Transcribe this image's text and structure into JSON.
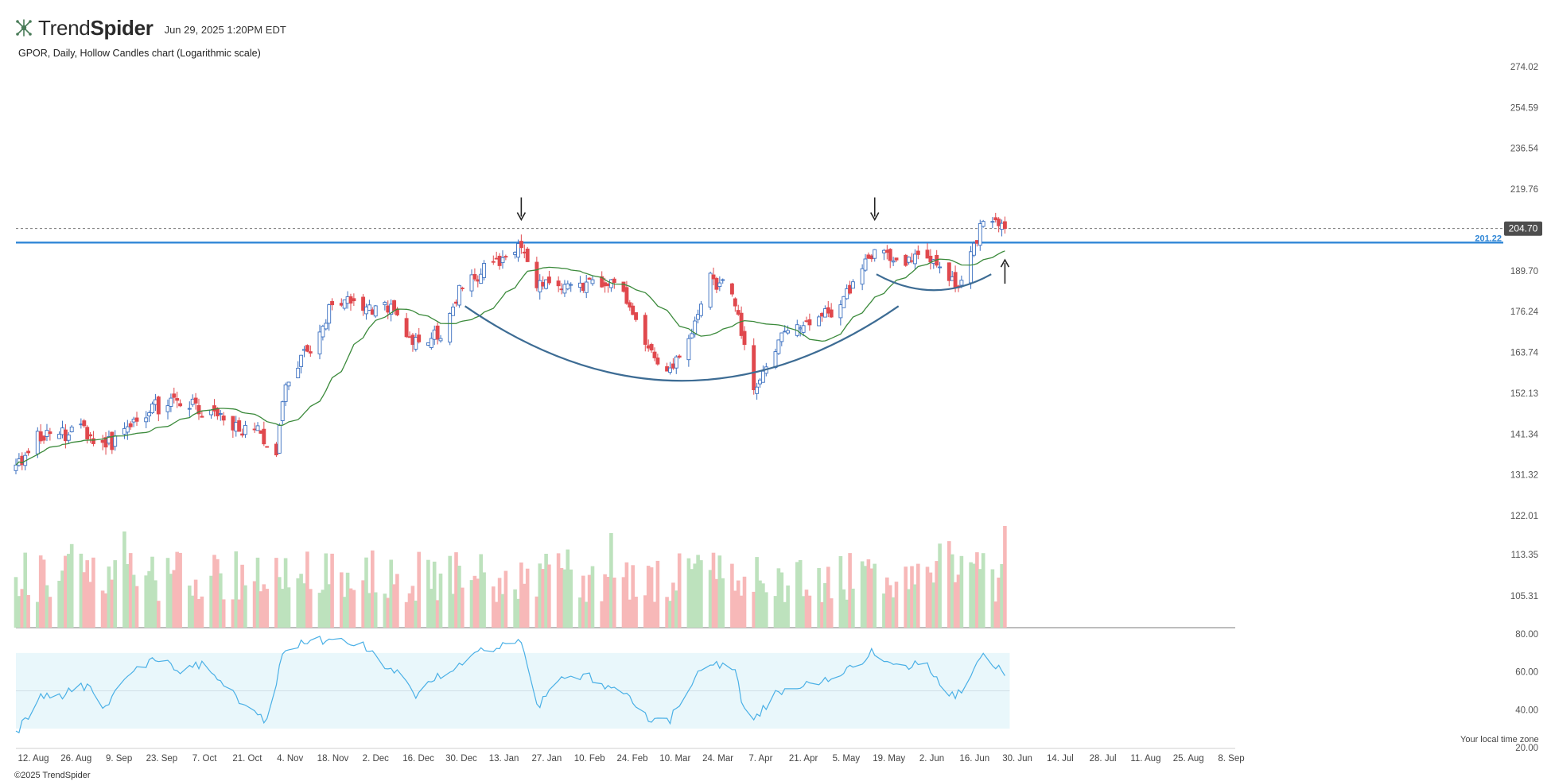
{
  "header": {
    "brand_light": "Trend",
    "brand_bold": "Spider",
    "timestamp": "Jun 29, 2025 1:20PM EDT",
    "subtitle": "GPOR, Daily, Hollow Candles chart (Logarithmic scale)"
  },
  "footer": {
    "copyright": "©2025 TrendSpider",
    "timezone_note": "Your local time zone"
  },
  "colors": {
    "up": "#3a6fc0",
    "down": "#e0484d",
    "ma": "#3b8a3b",
    "level": "#2f86d6",
    "rsi": "#4ab0e6",
    "rsi_band": "#e9f7fb",
    "vol_up": "#bde2bd",
    "vol_down": "#f7b8b8",
    "arc": "#3d6c94"
  },
  "chart_data": [
    {
      "type": "candlestick",
      "scale": "log",
      "y_ticks": [
        "274.02",
        "254.59",
        "236.54",
        "219.76",
        "189.70",
        "176.24",
        "163.74",
        "152.13",
        "141.34",
        "131.32",
        "122.01"
      ],
      "ylim": [
        122.01,
        274.02
      ],
      "x_ticks": [
        "12. Aug",
        "26. Aug",
        "9. Sep",
        "23. Sep",
        "7. Oct",
        "21. Oct",
        "4. Nov",
        "18. Nov",
        "2. Dec",
        "16. Dec",
        "30. Dec",
        "13. Jan",
        "27. Jan",
        "10. Feb",
        "24. Feb",
        "10. Mar",
        "24. Mar",
        "7. Apr",
        "21. Apr",
        "5. May",
        "19. May",
        "2. Jun",
        "16. Jun",
        "30. Jun",
        "14. Jul",
        "28. Jul",
        "11. Aug",
        "25. Aug",
        "8. Sep"
      ],
      "horizontal_level": {
        "value": 199.6,
        "label": ""
      },
      "last_price": {
        "value": 204.7,
        "label": "204.70"
      },
      "dashed_level": {
        "value": 201.22,
        "label": "201.22"
      },
      "moving_average": "20-day",
      "price_anchors": [
        {
          "date": "2024-08-12",
          "close": 134
        },
        {
          "date": "2024-08-19",
          "close": 140
        },
        {
          "date": "2024-08-26",
          "close": 141
        },
        {
          "date": "2024-09-03",
          "close": 142
        },
        {
          "date": "2024-09-10",
          "close": 138
        },
        {
          "date": "2024-09-16",
          "close": 142
        },
        {
          "date": "2024-09-23",
          "close": 147
        },
        {
          "date": "2024-09-30",
          "close": 150
        },
        {
          "date": "2024-10-07",
          "close": 149
        },
        {
          "date": "2024-10-14",
          "close": 147
        },
        {
          "date": "2024-10-21",
          "close": 144
        },
        {
          "date": "2024-10-28",
          "close": 142
        },
        {
          "date": "2024-11-04",
          "close": 138
        },
        {
          "date": "2024-11-06",
          "close": 152
        },
        {
          "date": "2024-11-12",
          "close": 163
        },
        {
          "date": "2024-11-18",
          "close": 168
        },
        {
          "date": "2024-11-22",
          "close": 180
        },
        {
          "date": "2024-12-02",
          "close": 177
        },
        {
          "date": "2024-12-09",
          "close": 178
        },
        {
          "date": "2024-12-16",
          "close": 171
        },
        {
          "date": "2024-12-20",
          "close": 166
        },
        {
          "date": "2024-12-27",
          "close": 170
        },
        {
          "date": "2025-01-03",
          "close": 185
        },
        {
          "date": "2025-01-10",
          "close": 190
        },
        {
          "date": "2025-01-17",
          "close": 193
        },
        {
          "date": "2025-01-22",
          "close": 199
        },
        {
          "date": "2025-01-27",
          "close": 186
        },
        {
          "date": "2025-02-03",
          "close": 182
        },
        {
          "date": "2025-02-10",
          "close": 184
        },
        {
          "date": "2025-02-18",
          "close": 186
        },
        {
          "date": "2025-02-24",
          "close": 182
        },
        {
          "date": "2025-03-03",
          "close": 165
        },
        {
          "date": "2025-03-10",
          "close": 158
        },
        {
          "date": "2025-03-17",
          "close": 168
        },
        {
          "date": "2025-03-24",
          "close": 187
        },
        {
          "date": "2025-03-31",
          "close": 184
        },
        {
          "date": "2025-04-04",
          "close": 165
        },
        {
          "date": "2025-04-08",
          "close": 152
        },
        {
          "date": "2025-04-14",
          "close": 166
        },
        {
          "date": "2025-04-21",
          "close": 170
        },
        {
          "date": "2025-04-28",
          "close": 174
        },
        {
          "date": "2025-05-05",
          "close": 178
        },
        {
          "date": "2025-05-12",
          "close": 192
        },
        {
          "date": "2025-05-16",
          "close": 196
        },
        {
          "date": "2025-05-23",
          "close": 192
        },
        {
          "date": "2025-05-30",
          "close": 193
        },
        {
          "date": "2025-06-06",
          "close": 190
        },
        {
          "date": "2025-06-11",
          "close": 184
        },
        {
          "date": "2025-06-16",
          "close": 196
        },
        {
          "date": "2025-06-20",
          "close": 208
        },
        {
          "date": "2025-06-27",
          "close": 204.7
        }
      ],
      "annotations": [
        {
          "type": "arrow-down",
          "date": "2025-01-22",
          "price": 211
        },
        {
          "type": "arrow-down",
          "date": "2025-05-16",
          "price": 211
        },
        {
          "type": "arrow-up",
          "date": "2025-06-27",
          "price": 188
        },
        {
          "type": "arc",
          "from": "2025-01-22",
          "to": "2025-05-16",
          "label": "cup"
        },
        {
          "type": "arc",
          "from": "2025-05-16",
          "to": "2025-06-23",
          "label": "handle"
        }
      ]
    },
    {
      "type": "bar",
      "name": "Volume",
      "y_ticks": [
        "113.35",
        "105.31"
      ]
    },
    {
      "type": "line",
      "name": "RSI",
      "y_ticks": [
        "80.00",
        "60.00",
        "40.00",
        "20.00"
      ],
      "ylim": [
        20,
        80
      ],
      "band": [
        30,
        70
      ],
      "rsi_anchors": [
        {
          "date": "2024-08-12",
          "value": 27
        },
        {
          "date": "2024-08-20",
          "value": 47
        },
        {
          "date": "2024-08-27",
          "value": 48
        },
        {
          "date": "2024-09-04",
          "value": 53
        },
        {
          "date": "2024-09-10",
          "value": 41
        },
        {
          "date": "2024-09-17",
          "value": 57
        },
        {
          "date": "2024-09-26",
          "value": 68
        },
        {
          "date": "2024-10-04",
          "value": 60
        },
        {
          "date": "2024-10-11",
          "value": 64
        },
        {
          "date": "2024-10-17",
          "value": 55
        },
        {
          "date": "2024-10-24",
          "value": 44
        },
        {
          "date": "2024-11-01",
          "value": 33
        },
        {
          "date": "2024-11-06",
          "value": 70
        },
        {
          "date": "2024-11-12",
          "value": 75
        },
        {
          "date": "2024-11-22",
          "value": 78
        },
        {
          "date": "2024-12-02",
          "value": 75
        },
        {
          "date": "2024-12-06",
          "value": 67
        },
        {
          "date": "2024-12-13",
          "value": 60
        },
        {
          "date": "2024-12-19",
          "value": 48
        },
        {
          "date": "2024-12-27",
          "value": 58
        },
        {
          "date": "2025-01-08",
          "value": 70
        },
        {
          "date": "2025-01-21",
          "value": 78
        },
        {
          "date": "2025-01-23",
          "value": 72
        },
        {
          "date": "2025-01-27",
          "value": 41
        },
        {
          "date": "2025-02-04",
          "value": 55
        },
        {
          "date": "2025-02-13",
          "value": 57
        },
        {
          "date": "2025-02-24",
          "value": 48
        },
        {
          "date": "2025-03-06",
          "value": 33
        },
        {
          "date": "2025-03-11",
          "value": 35
        },
        {
          "date": "2025-03-20",
          "value": 58
        },
        {
          "date": "2025-03-26",
          "value": 64
        },
        {
          "date": "2025-04-01",
          "value": 61
        },
        {
          "date": "2025-04-03",
          "value": 44
        },
        {
          "date": "2025-04-07",
          "value": 35
        },
        {
          "date": "2025-04-14",
          "value": 48
        },
        {
          "date": "2025-04-25",
          "value": 53
        },
        {
          "date": "2025-05-09",
          "value": 62
        },
        {
          "date": "2025-05-15",
          "value": 70
        },
        {
          "date": "2025-05-23",
          "value": 64
        },
        {
          "date": "2025-06-02",
          "value": 63
        },
        {
          "date": "2025-06-06",
          "value": 53
        },
        {
          "date": "2025-06-11",
          "value": 46
        },
        {
          "date": "2025-06-18",
          "value": 63
        },
        {
          "date": "2025-06-20",
          "value": 68
        },
        {
          "date": "2025-06-27",
          "value": 60
        }
      ]
    }
  ]
}
